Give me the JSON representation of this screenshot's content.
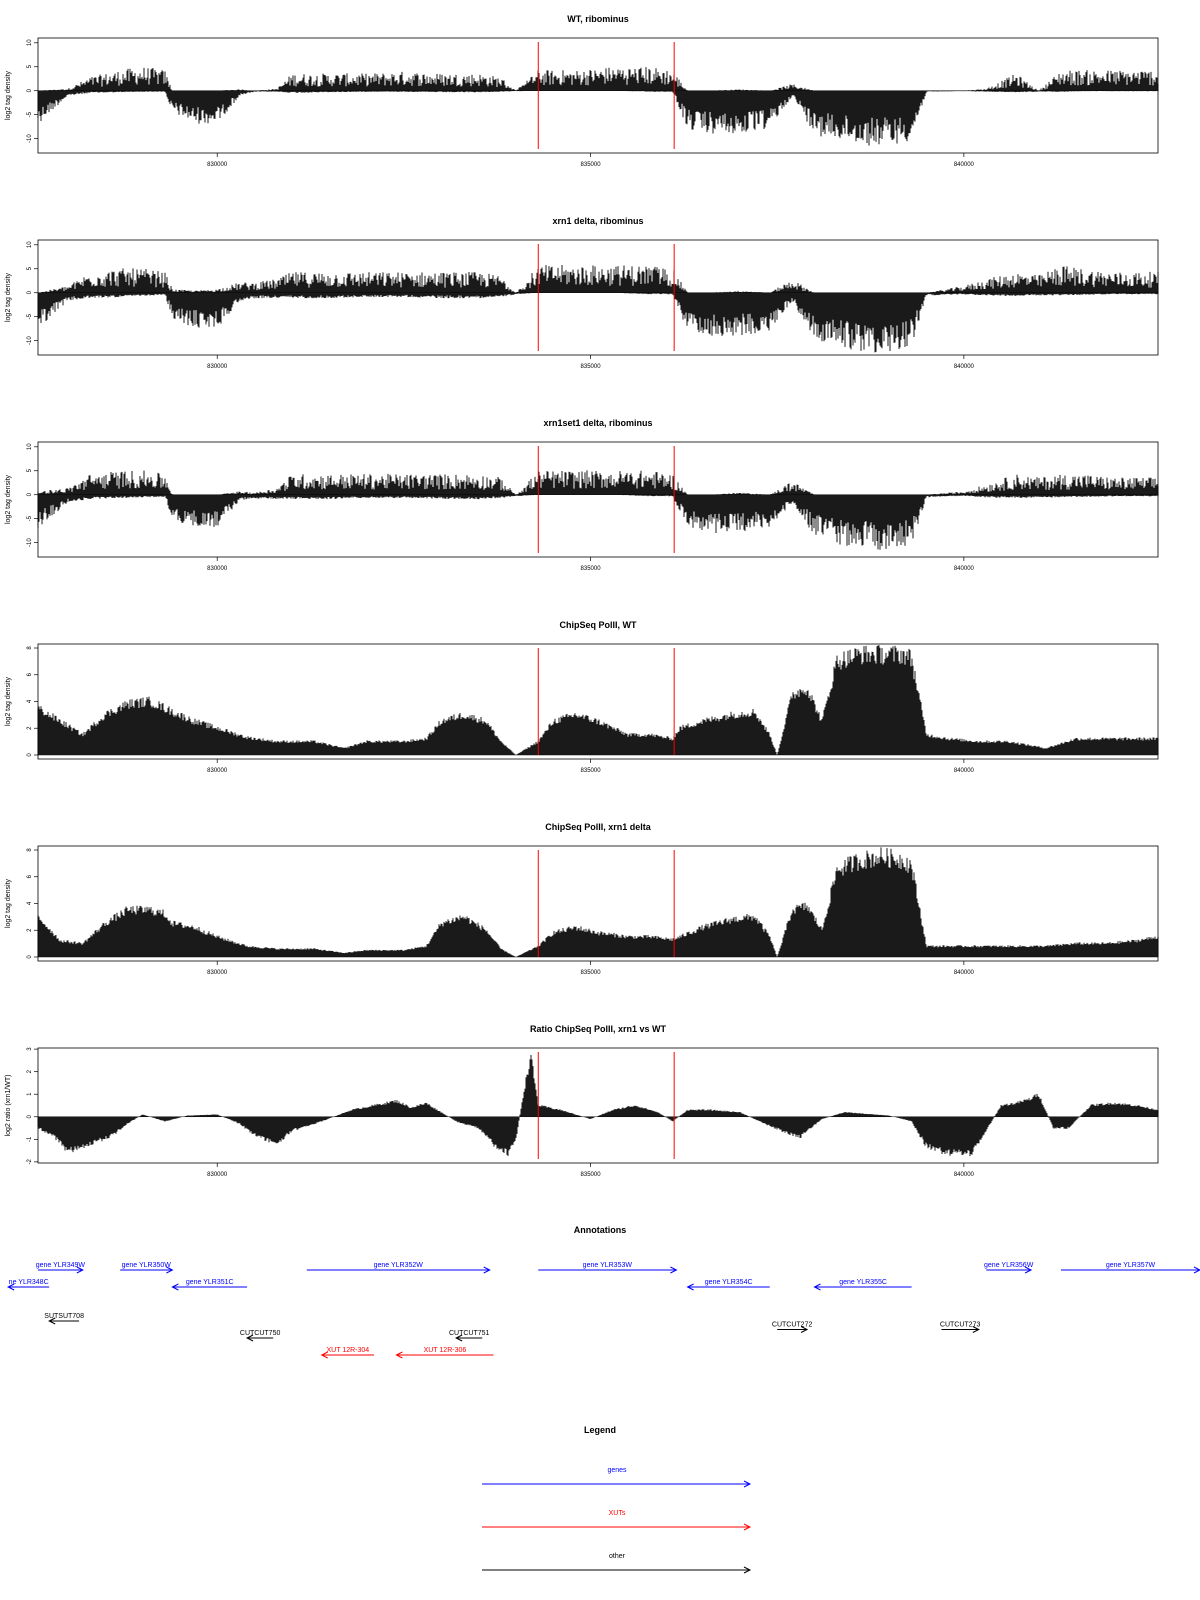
{
  "colors": {
    "signal": "#000000",
    "marker": "#ff0000",
    "genes": "#0000ff",
    "xuts": "#ff0000",
    "other": "#000000"
  },
  "chart_data": [
    {
      "type": "area",
      "title": "WT, ribominus",
      "ylabel": "log2 tag density",
      "xlim": [
        827600,
        842600
      ],
      "ylim": [
        -13,
        11
      ],
      "yticks": [
        10,
        5,
        0,
        -5,
        -10
      ],
      "xticks": [
        830000,
        835000,
        840000
      ],
      "markers": [
        834300,
        836120
      ],
      "style": "strand",
      "x": [
        827600,
        828000,
        828300,
        828700,
        829000,
        829300,
        829400,
        829700,
        830000,
        830300,
        830500,
        830800,
        831000,
        831500,
        832000,
        832500,
        833000,
        833500,
        833800,
        834000,
        834300,
        834800,
        835300,
        835800,
        836100,
        836300,
        836600,
        837000,
        837400,
        837700,
        838000,
        838300,
        838700,
        839000,
        839300,
        839500,
        840000,
        840300,
        840700,
        841000,
        841300,
        841600,
        842000,
        842600
      ],
      "pos": [
        0,
        0.3,
        2,
        3,
        3.5,
        3,
        0,
        0,
        0,
        0.2,
        0,
        0.3,
        2.5,
        2.5,
        2.5,
        2.8,
        2.5,
        2.5,
        2,
        0,
        3,
        3,
        3.5,
        3.5,
        3,
        0,
        0,
        0.2,
        0,
        1,
        0,
        0,
        0,
        0,
        0,
        0,
        0,
        0.3,
        2.5,
        0,
        3,
        3,
        3,
        3
      ],
      "neg": [
        -6,
        -1,
        -0.4,
        -0.3,
        -0.2,
        -0.2,
        -4,
        -6,
        -6,
        -1,
        -0.2,
        -0.2,
        -0.4,
        -0.3,
        -0.2,
        -0.2,
        -0.3,
        -0.3,
        -0.2,
        -0.1,
        0,
        0,
        0,
        -0.2,
        -0.2,
        -7,
        -8,
        -8,
        -7,
        -1,
        -8,
        -9,
        -10,
        -10,
        -9,
        -0.2,
        -0.1,
        -0.2,
        -0.3,
        -0.2,
        -0.2,
        -0.1,
        -0.1,
        -0.1
      ]
    },
    {
      "type": "area",
      "title": "xrn1 delta, ribominus",
      "ylabel": "log2 tag density",
      "xlim": [
        827600,
        842600
      ],
      "ylim": [
        -13,
        11
      ],
      "yticks": [
        10,
        5,
        0,
        -5,
        -10
      ],
      "xticks": [
        830000,
        835000,
        840000
      ],
      "markers": [
        834300,
        836120
      ],
      "style": "strand",
      "x": [
        827600,
        828000,
        828300,
        828700,
        829000,
        829300,
        829400,
        829700,
        830000,
        830300,
        830500,
        830800,
        831000,
        831500,
        832000,
        832500,
        833000,
        833500,
        833800,
        834000,
        834300,
        834800,
        835300,
        835800,
        836100,
        836300,
        836600,
        837000,
        837400,
        837700,
        838000,
        838300,
        838700,
        839000,
        839300,
        839500,
        840000,
        840300,
        840700,
        841000,
        841300,
        841600,
        842000,
        842600
      ],
      "pos": [
        0,
        1,
        3,
        3.5,
        3.5,
        3,
        0.5,
        0.3,
        0.5,
        1.5,
        1.5,
        2,
        3,
        3,
        3,
        3,
        3,
        3,
        2.5,
        0,
        4,
        4,
        4,
        4,
        3.5,
        0,
        0,
        0.3,
        0,
        2,
        0,
        0,
        0,
        0,
        0,
        0,
        1,
        2,
        3,
        2.5,
        4,
        3.5,
        3,
        3
      ],
      "neg": [
        -6.5,
        -1.5,
        -1,
        -0.8,
        -0.6,
        -0.4,
        -5,
        -6.5,
        -6.5,
        -1.5,
        -1,
        -1,
        -1,
        -1,
        -0.8,
        -0.8,
        -1,
        -1,
        -0.8,
        -0.3,
        0,
        0,
        0,
        -0.3,
        -0.3,
        -7,
        -8,
        -8,
        -7,
        -1.5,
        -8.5,
        -10,
        -11,
        -11,
        -9.5,
        -0.5,
        -0.3,
        -0.5,
        -0.6,
        -0.5,
        -0.5,
        -0.4,
        -0.3,
        -0.3
      ]
    },
    {
      "type": "area",
      "title": "xrn1set1 delta, ribominus",
      "ylabel": "log2 tag density",
      "xlim": [
        827600,
        842600
      ],
      "ylim": [
        -13,
        11
      ],
      "yticks": [
        10,
        5,
        0,
        -5,
        -10
      ],
      "xticks": [
        830000,
        835000,
        840000
      ],
      "markers": [
        834300,
        836120
      ],
      "style": "strand",
      "x": [
        827600,
        828000,
        828300,
        828700,
        829000,
        829300,
        829400,
        829700,
        830000,
        830300,
        830500,
        830800,
        831000,
        831500,
        832000,
        832500,
        833000,
        833500,
        833800,
        834000,
        834300,
        834800,
        835300,
        835800,
        836100,
        836300,
        836600,
        837000,
        837400,
        837700,
        838000,
        838300,
        838700,
        839000,
        839300,
        839500,
        840000,
        840300,
        840700,
        841000,
        841300,
        841600,
        842000,
        842600
      ],
      "pos": [
        0.5,
        1,
        3,
        3.5,
        3.5,
        3,
        0,
        0,
        0,
        0.5,
        0.3,
        1,
        3,
        3,
        3,
        3,
        3,
        3,
        2.5,
        0,
        3.5,
        3.5,
        3.5,
        3.5,
        3,
        0,
        0,
        0.3,
        0,
        2,
        0,
        0,
        0,
        0,
        0,
        0,
        0.5,
        1.5,
        3,
        2.5,
        3,
        3,
        2.5,
        2.5
      ],
      "neg": [
        -6,
        -1.5,
        -0.8,
        -0.6,
        -0.5,
        -0.4,
        -4.5,
        -6,
        -6,
        -1,
        -0.8,
        -0.8,
        -0.8,
        -0.8,
        -0.6,
        -0.6,
        -0.8,
        -0.8,
        -0.6,
        -0.3,
        0,
        0,
        0,
        -0.3,
        -0.3,
        -6,
        -7,
        -7,
        -6,
        -1.5,
        -7.5,
        -9,
        -10,
        -10,
        -9,
        -0.5,
        -0.2,
        -0.5,
        -0.6,
        -0.5,
        -0.5,
        -0.4,
        -0.3,
        -0.3
      ]
    },
    {
      "type": "area",
      "title": "ChipSeq PolII, WT",
      "ylabel": "log2 tag density",
      "xlim": [
        827600,
        842600
      ],
      "ylim": [
        -0.3,
        8.3
      ],
      "yticks": [
        0,
        2,
        4,
        6,
        8
      ],
      "xticks": [
        830000,
        835000,
        840000
      ],
      "markers": [
        834300,
        836120
      ],
      "style": "single",
      "x": [
        827600,
        827900,
        828200,
        828500,
        828800,
        829100,
        829300,
        829400,
        829700,
        830000,
        830400,
        830800,
        831300,
        831700,
        832000,
        832500,
        832800,
        833000,
        833300,
        833600,
        833800,
        834000,
        834300,
        834500,
        834800,
        835100,
        835500,
        835800,
        836100,
        836200,
        836500,
        836900,
        837200,
        837400,
        837500,
        837700,
        837900,
        838100,
        838300,
        838600,
        838900,
        839200,
        839300,
        839500,
        839800,
        840200,
        840600,
        841100,
        841500,
        841900,
        842300,
        842600
      ],
      "values": [
        3.5,
        2.5,
        1.5,
        3,
        3.8,
        4,
        3.5,
        3.2,
        2.5,
        2,
        1.3,
        1,
        1,
        0.5,
        1,
        1,
        1.2,
        2.5,
        3,
        2.5,
        1,
        0,
        1,
        2.5,
        3,
        2.5,
        1.5,
        1.5,
        1.2,
        2,
        2.5,
        3,
        3.2,
        1.5,
        0,
        4.5,
        5,
        2.5,
        7,
        7.5,
        7.5,
        7.5,
        7.2,
        1.5,
        1.2,
        1,
        1,
        0.5,
        1.2,
        1.2,
        1.2,
        1.2
      ]
    },
    {
      "type": "area",
      "title": "ChipSeq PolII, xrn1 delta",
      "ylabel": "log2 tag density",
      "xlim": [
        827600,
        842600
      ],
      "ylim": [
        -0.3,
        8.3
      ],
      "yticks": [
        0,
        2,
        4,
        6,
        8
      ],
      "xticks": [
        830000,
        835000,
        840000
      ],
      "markers": [
        834300,
        836120
      ],
      "style": "single",
      "x": [
        827600,
        827900,
        828200,
        828500,
        828800,
        829100,
        829300,
        829400,
        829700,
        830000,
        830400,
        830800,
        831300,
        831700,
        832000,
        832500,
        832800,
        833000,
        833300,
        833600,
        833800,
        834000,
        834300,
        834500,
        834800,
        835100,
        835500,
        835800,
        836100,
        836200,
        836500,
        836900,
        837200,
        837400,
        837500,
        837700,
        837900,
        838100,
        838300,
        838600,
        838900,
        839200,
        839300,
        839500,
        839800,
        840200,
        840600,
        841100,
        841500,
        841900,
        842300,
        842600
      ],
      "values": [
        3,
        1.2,
        1,
        2.5,
        3.5,
        3.5,
        3.2,
        2.5,
        2.2,
        1.5,
        0.8,
        0.6,
        0.6,
        0.3,
        0.5,
        0.5,
        0.8,
        2.5,
        3,
        2,
        0.6,
        0,
        0.8,
        1.8,
        2.2,
        1.8,
        1.5,
        1.5,
        1.3,
        1.5,
        2.2,
        2.8,
        3,
        1.5,
        0,
        3.5,
        3.8,
        2,
        6.5,
        7.2,
        7.5,
        7.2,
        6.8,
        0.8,
        0.8,
        0.8,
        0.8,
        0.8,
        1,
        1,
        1.2,
        1.5
      ]
    },
    {
      "type": "area",
      "title": "Ratio ChipSeq PolII, xrn1 vs WT",
      "ylabel": "log2 ratio (xrn1/WT)",
      "xlim": [
        827600,
        842600
      ],
      "ylim": [
        -2.05,
        3.05
      ],
      "yticks": [
        3,
        2,
        1,
        0,
        -1,
        -2
      ],
      "xticks": [
        830000,
        835000,
        840000
      ],
      "markers": [
        834300,
        836120
      ],
      "style": "single",
      "x": [
        827600,
        827800,
        828000,
        828300,
        828600,
        828800,
        829000,
        829300,
        829600,
        830000,
        830300,
        830500,
        830800,
        831000,
        831400,
        831800,
        832100,
        832400,
        832600,
        832800,
        833200,
        833500,
        833700,
        833900,
        834000,
        834100,
        834200,
        834300,
        834600,
        835000,
        835300,
        835600,
        835900,
        836100,
        836300,
        836600,
        837000,
        837400,
        837800,
        838100,
        838400,
        838800,
        839000,
        839300,
        839500,
        839800,
        840100,
        840300,
        840500,
        840700,
        840900,
        841000,
        841200,
        841400,
        841700,
        842000,
        842300,
        842600
      ],
      "values": [
        -0.5,
        -0.8,
        -1.5,
        -1.2,
        -0.8,
        -0.3,
        0.1,
        -0.2,
        0.05,
        0.1,
        -0.3,
        -0.8,
        -1.2,
        -0.6,
        -0.2,
        0.3,
        0.5,
        0.7,
        0.4,
        0.6,
        -0.2,
        -0.5,
        -1.2,
        -1.6,
        -1.0,
        1.0,
        2.7,
        0.5,
        0.3,
        -0.1,
        0.3,
        0.5,
        0.2,
        -0.2,
        0.3,
        0.3,
        0.2,
        -0.4,
        -0.9,
        -0.1,
        0.2,
        0.1,
        0.05,
        -0.2,
        -1.3,
        -1.6,
        -1.6,
        -0.6,
        0.5,
        0.6,
        0.8,
        1.0,
        -0.5,
        -0.5,
        0.5,
        0.6,
        0.5,
        0.3
      ]
    }
  ],
  "annotations": {
    "title": "Annotations",
    "items": [
      {
        "label": "gene YLR349W",
        "class": "genes",
        "dir": 1,
        "start": 827600,
        "end": 828200,
        "row": 0
      },
      {
        "label": "ne YLR348C",
        "class": "genes",
        "dir": -1,
        "start": 827200,
        "end": 827750,
        "row": 1
      },
      {
        "label": "gene YLR350W",
        "class": "genes",
        "dir": 1,
        "start": 828700,
        "end": 829400,
        "row": 0
      },
      {
        "label": "gene YLR351C",
        "class": "genes",
        "dir": -1,
        "start": 829400,
        "end": 830400,
        "row": 1
      },
      {
        "label": "gene YLR352W",
        "class": "genes",
        "dir": 1,
        "start": 831200,
        "end": 833650,
        "row": 0
      },
      {
        "label": "gene YLR353W",
        "class": "genes",
        "dir": 1,
        "start": 834300,
        "end": 836150,
        "row": 0
      },
      {
        "label": "gene YLR354C",
        "class": "genes",
        "dir": -1,
        "start": 836300,
        "end": 837400,
        "row": 1
      },
      {
        "label": "gene YLR355C",
        "class": "genes",
        "dir": -1,
        "start": 838000,
        "end": 839300,
        "row": 1
      },
      {
        "label": "gene YLR356W",
        "class": "genes",
        "dir": 1,
        "start": 840300,
        "end": 840900,
        "row": 0
      },
      {
        "label": "gene YLR357W",
        "class": "genes",
        "dir": 1,
        "start": 841300,
        "end": 843300,
        "row": 0
      },
      {
        "label": "SUTSUT708",
        "class": "other",
        "dir": -1,
        "start": 827750,
        "end": 828150,
        "row": 3
      },
      {
        "label": "CUTCUT750",
        "class": "other",
        "dir": -1,
        "start": 830400,
        "end": 830750,
        "row": 4
      },
      {
        "label": "CUTCUT751",
        "class": "other",
        "dir": -1,
        "start": 833200,
        "end": 833550,
        "row": 4
      },
      {
        "label": "CUTCUT272",
        "class": "other",
        "dir": 1,
        "start": 837500,
        "end": 837900,
        "row": 3.5
      },
      {
        "label": "CUTCUT273",
        "class": "other",
        "dir": 1,
        "start": 839700,
        "end": 840200,
        "row": 3.5
      },
      {
        "label": "XUT 12R-304",
        "class": "xuts",
        "dir": -1,
        "start": 831400,
        "end": 832100,
        "row": 5
      },
      {
        "label": "XUT 12R-306",
        "class": "xuts",
        "dir": -1,
        "start": 832400,
        "end": 833700,
        "row": 5
      }
    ]
  },
  "legend": {
    "title": "Legend",
    "entries": [
      {
        "label": "genes",
        "class": "genes"
      },
      {
        "label": "XUTs",
        "class": "xuts"
      },
      {
        "label": "other",
        "class": "other"
      }
    ]
  }
}
